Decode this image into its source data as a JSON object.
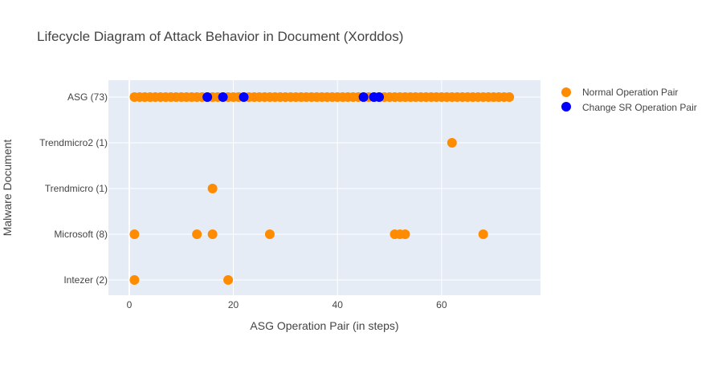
{
  "chart_data": {
    "type": "scatter",
    "title": "Lifecycle Diagram of Attack Behavior in Document (Xorddos)",
    "xlabel": "ASG Operation Pair (in steps)",
    "ylabel": "Malware Document",
    "xlim": [
      -4,
      79
    ],
    "x_ticks": [
      0,
      20,
      40,
      60
    ],
    "categories": [
      "Intezer (2)",
      "Microsoft (8)",
      "Trendmicro (1)",
      "Trendmicro2 (1)",
      "ASG (73)"
    ],
    "grid": true,
    "legend": "right",
    "series": [
      {
        "name": "Normal Operation Pair",
        "color": "#ff8c00",
        "points": [
          {
            "y": "ASG (73)",
            "x": [
              1,
              2,
              3,
              4,
              5,
              6,
              7,
              8,
              9,
              10,
              11,
              12,
              13,
              14,
              16,
              17,
              19,
              20,
              21,
              23,
              24,
              25,
              26,
              27,
              28,
              29,
              30,
              31,
              32,
              33,
              34,
              35,
              36,
              37,
              38,
              39,
              40,
              41,
              42,
              43,
              44,
              46,
              49,
              50,
              51,
              52,
              53,
              54,
              55,
              56,
              57,
              58,
              59,
              60,
              61,
              62,
              63,
              64,
              65,
              66,
              67,
              68,
              69,
              70,
              71,
              72,
              73
            ]
          },
          {
            "y": "Trendmicro2 (1)",
            "x": [
              62
            ]
          },
          {
            "y": "Trendmicro (1)",
            "x": [
              16
            ]
          },
          {
            "y": "Microsoft (8)",
            "x": [
              1,
              13,
              16,
              27,
              51,
              52,
              53,
              68
            ]
          },
          {
            "y": "Intezer (2)",
            "x": [
              1,
              19
            ]
          }
        ]
      },
      {
        "name": "Change SR Operation Pair",
        "color": "#0000ff",
        "points": [
          {
            "y": "ASG (73)",
            "x": [
              15,
              18,
              22,
              45,
              47,
              48
            ]
          }
        ]
      }
    ]
  }
}
